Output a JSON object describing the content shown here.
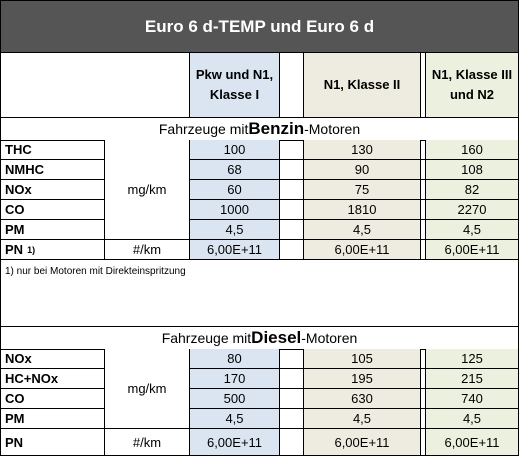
{
  "title": "Euro 6 d-TEMP und Euro 6 d",
  "columns": {
    "col1": "Pkw und N1,\nKlasse I",
    "col2": "N1, Klasse II",
    "col3": "N1, Klasse III\nund N2"
  },
  "colors": {
    "title_bg": "#555555",
    "col1_bg": "#dbe5f1",
    "col2_bg": "#eeece1",
    "col3_bg": "#ebf1de"
  },
  "petrol": {
    "heading_pre": "Fahrzeuge mit ",
    "heading_bold": "Benzin",
    "heading_post": "-Motoren",
    "unit_mass": "mg/km",
    "rows": [
      {
        "label": "THC",
        "v1": "100",
        "v2": "130",
        "v3": "160"
      },
      {
        "label": "NMHC",
        "v1": "68",
        "v2": "90",
        "v3": "108"
      },
      {
        "label": "NOx",
        "v1": "60",
        "v2": "75",
        "v3": "82"
      },
      {
        "label": "CO",
        "v1": "1000",
        "v2": "1810",
        "v3": "2270"
      },
      {
        "label": "PM",
        "v1": "4,5",
        "v2": "4,5",
        "v3": "4,5"
      }
    ],
    "pn": {
      "label": "PN",
      "note_mark": "1)",
      "unit": "#/km",
      "v1": "6,00E+11",
      "v2": "6,00E+11",
      "v3": "6,00E+11"
    },
    "footnote": "1) nur bei Motoren mit Direkteinspritzung"
  },
  "diesel": {
    "heading_pre": "Fahrzeuge mit ",
    "heading_bold": "Diesel",
    "heading_post": "-Motoren",
    "unit_mass": "mg/km",
    "rows": [
      {
        "label": "NOx",
        "v1": "80",
        "v2": "105",
        "v3": "125"
      },
      {
        "label": "HC+NOx",
        "v1": "170",
        "v2": "195",
        "v3": "215"
      },
      {
        "label": "CO",
        "v1": "500",
        "v2": "630",
        "v3": "740"
      },
      {
        "label": "PM",
        "v1": "4,5",
        "v2": "4,5",
        "v3": "4,5"
      }
    ],
    "pn": {
      "label": "PN",
      "unit": "#/km",
      "v1": "6,00E+11",
      "v2": "6,00E+11",
      "v3": "6,00E+11"
    }
  }
}
